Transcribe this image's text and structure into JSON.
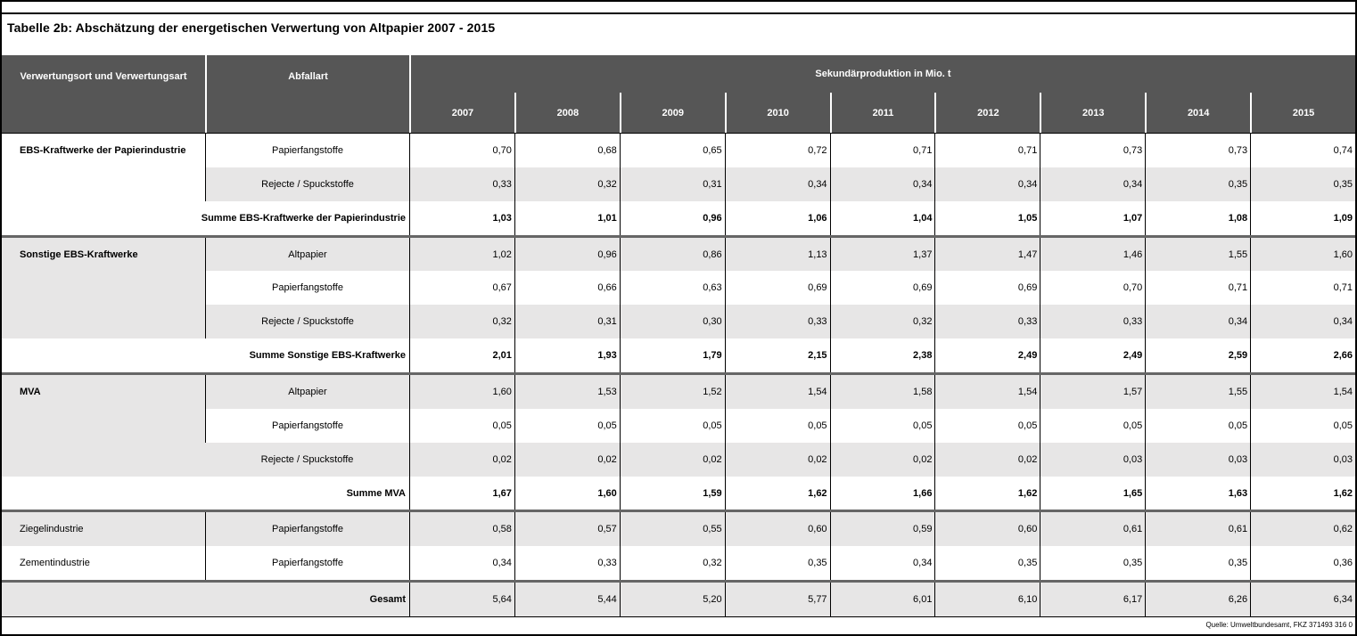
{
  "title": "Tabelle 2b: Abschätzung der energetischen Verwertung  von Altpapier 2007 - 2015",
  "header": {
    "col1": "Verwertungsort und Verwertungsart",
    "col2": "Abfallart",
    "group": "Sekundärproduktion in Mio. t",
    "years": [
      "2007",
      "2008",
      "2009",
      "2010",
      "2011",
      "2012",
      "2013",
      "2014",
      "2015"
    ]
  },
  "rows": [
    {
      "label1": "EBS-Kraftwerke der Papierindustrie",
      "label1_bold": true,
      "label2": "Papierfangstoffe",
      "col1_gray": false,
      "row_gray": false,
      "values_bold": false,
      "thick_top": false,
      "values": [
        "0,70",
        "0,68",
        "0,65",
        "0,72",
        "0,71",
        "0,71",
        "0,73",
        "0,73",
        "0,74"
      ]
    },
    {
      "label1": "",
      "label1_bold": false,
      "label2": "Rejecte / Spuckstoffe",
      "col1_gray": false,
      "row_gray": true,
      "values_bold": false,
      "thick_top": false,
      "values": [
        "0,33",
        "0,32",
        "0,31",
        "0,34",
        "0,34",
        "0,34",
        "0,34",
        "0,35",
        "0,35"
      ]
    },
    {
      "span_label": "Summe EBS-Kraftwerke der Papierindustrie",
      "row_gray": false,
      "values_bold": true,
      "thick_top": false,
      "values": [
        "1,03",
        "1,01",
        "0,96",
        "1,06",
        "1,04",
        "1,05",
        "1,07",
        "1,08",
        "1,09"
      ]
    },
    {
      "label1": "Sonstige EBS-Kraftwerke",
      "label1_bold": true,
      "label2": "Altpapier",
      "col1_gray": true,
      "row_gray": true,
      "values_bold": false,
      "thick_top": true,
      "values": [
        "1,02",
        "0,96",
        "0,86",
        "1,13",
        "1,37",
        "1,47",
        "1,46",
        "1,55",
        "1,60"
      ]
    },
    {
      "label1": "",
      "label1_bold": false,
      "label2": "Papierfangstoffe",
      "col1_gray": true,
      "row_gray": false,
      "values_bold": false,
      "thick_top": false,
      "values": [
        "0,67",
        "0,66",
        "0,63",
        "0,69",
        "0,69",
        "0,69",
        "0,70",
        "0,71",
        "0,71"
      ]
    },
    {
      "label1": "",
      "label1_bold": false,
      "label2": "Rejecte / Spuckstoffe",
      "col1_gray": true,
      "row_gray": true,
      "values_bold": false,
      "thick_top": false,
      "values": [
        "0,32",
        "0,31",
        "0,30",
        "0,33",
        "0,32",
        "0,33",
        "0,33",
        "0,34",
        "0,34"
      ]
    },
    {
      "span_label": "Summe Sonstige EBS-Kraftwerke",
      "row_gray": false,
      "values_bold": true,
      "thick_top": false,
      "values": [
        "2,01",
        "1,93",
        "1,79",
        "2,15",
        "2,38",
        "2,49",
        "2,49",
        "2,59",
        "2,66"
      ]
    },
    {
      "label1": "MVA",
      "label1_bold": true,
      "label2": "Altpapier",
      "col1_gray": true,
      "row_gray": true,
      "values_bold": false,
      "thick_top": true,
      "values": [
        "1,60",
        "1,53",
        "1,52",
        "1,54",
        "1,58",
        "1,54",
        "1,57",
        "1,55",
        "1,54"
      ]
    },
    {
      "label1": "",
      "label1_bold": false,
      "label2": "Papierfangstoffe",
      "col1_gray": true,
      "row_gray": false,
      "values_bold": false,
      "thick_top": false,
      "values": [
        "0,05",
        "0,05",
        "0,05",
        "0,05",
        "0,05",
        "0,05",
        "0,05",
        "0,05",
        "0,05"
      ]
    },
    {
      "label1": "",
      "label1_bold": false,
      "label2": "Rejecte / Spuckstoffe",
      "col1_gray": true,
      "row_gray": true,
      "values_bold": false,
      "thick_top": false,
      "col12_border": false,
      "values": [
        "0,02",
        "0,02",
        "0,02",
        "0,02",
        "0,02",
        "0,02",
        "0,03",
        "0,03",
        "0,03"
      ]
    },
    {
      "span_label": "Summe MVA",
      "row_gray": false,
      "values_bold": true,
      "thick_top": false,
      "values": [
        "1,67",
        "1,60",
        "1,59",
        "1,62",
        "1,66",
        "1,62",
        "1,65",
        "1,63",
        "1,62"
      ]
    },
    {
      "label1": "Ziegelindustrie",
      "label1_bold": false,
      "label2": "Papierfangstoffe",
      "col1_gray": true,
      "row_gray": true,
      "values_bold": false,
      "thick_top": true,
      "values": [
        "0,58",
        "0,57",
        "0,55",
        "0,60",
        "0,59",
        "0,60",
        "0,61",
        "0,61",
        "0,62"
      ]
    },
    {
      "label1": "Zementindustrie",
      "label1_bold": false,
      "label2": "Papierfangstoffe",
      "col1_gray": false,
      "row_gray": false,
      "values_bold": false,
      "thick_top": false,
      "values": [
        "0,34",
        "0,33",
        "0,32",
        "0,35",
        "0,34",
        "0,35",
        "0,35",
        "0,35",
        "0,36"
      ]
    },
    {
      "span_label": "Gesamt",
      "row_gray": true,
      "values_bold": false,
      "thick_top": true,
      "values": [
        "5,64",
        "5,44",
        "5,20",
        "5,77",
        "6,01",
        "6,10",
        "6,17",
        "6,26",
        "6,34"
      ]
    }
  ],
  "footer": {
    "source": "Quelle: Umweltbundesamt, FKZ 371493 316 0"
  },
  "colors": {
    "header_bg": "#565656",
    "header_text": "#ffffff",
    "row_shade": "#e7e6e6",
    "section_divider": "#666666",
    "border": "#000000"
  }
}
